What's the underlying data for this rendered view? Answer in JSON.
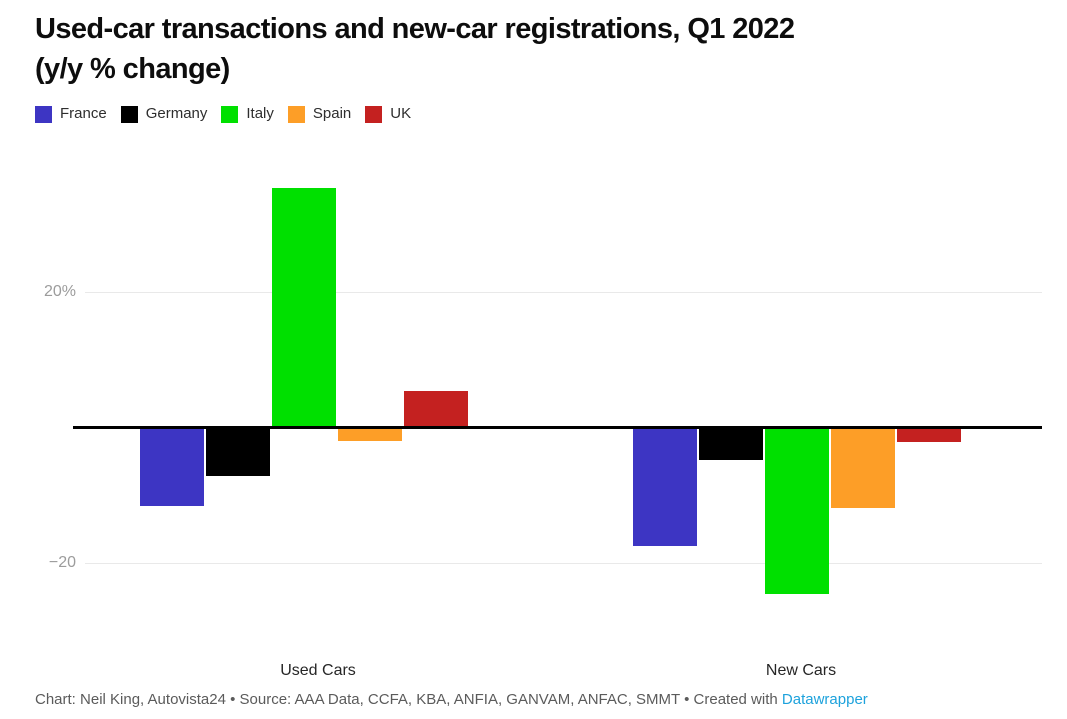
{
  "header": {
    "title": "Used-car transactions and new-car registrations, Q1 2022\n(y/y % change)"
  },
  "chart_data": {
    "type": "bar",
    "title": "Used-car transactions and new-car registrations, Q1 2022 (y/y % change)",
    "categories": [
      "Used Cars",
      "New Cars"
    ],
    "series": [
      {
        "name": "France",
        "color": "#3d35c3",
        "values": [
          -11.4,
          -17.3
        ]
      },
      {
        "name": "Germany",
        "color": "#000000",
        "values": [
          -7.0,
          -4.6
        ]
      },
      {
        "name": "Italy",
        "color": "#00e000",
        "values": [
          35.1,
          -24.4
        ]
      },
      {
        "name": "Spain",
        "color": "#fd9e27",
        "values": [
          -1.7,
          -11.6
        ]
      },
      {
        "name": "UK",
        "color": "#c42120",
        "values": [
          5.1,
          -1.9
        ]
      }
    ],
    "unit": "%",
    "yticks": [
      {
        "value": 20,
        "label": "20%"
      },
      {
        "value": -20,
        "label": "−20"
      }
    ],
    "ylim": [
      -30,
      40
    ],
    "grid": "horizontal",
    "legend_position": "top",
    "baseline_value": 0
  },
  "footer": {
    "prefix": "Chart: Neil King, Autovista24 • Source: AAA Data, CCFA, KBA, ANFIA, GANVAM, ANFAC, SMMT • Created with ",
    "link_label": "Datawrapper",
    "link_color": "#1da2dc"
  }
}
